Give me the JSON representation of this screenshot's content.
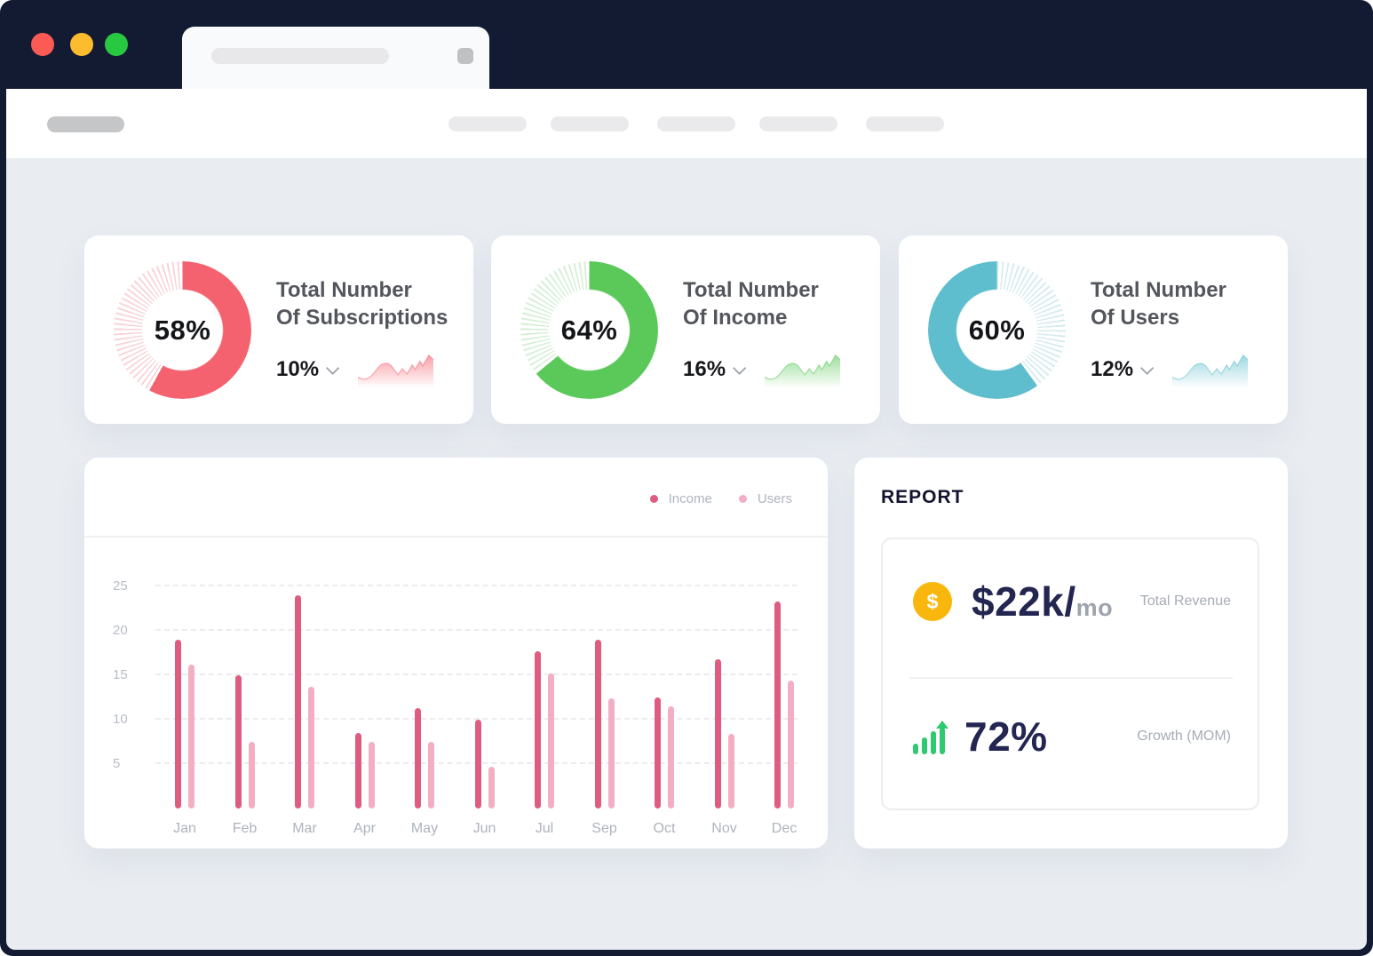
{
  "window": {
    "traffic_lights": {
      "close": "#FB5A55",
      "minimize": "#FDBC2E",
      "maximize": "#28C940"
    },
    "frame_color": "#131B33"
  },
  "stat_cards": [
    {
      "id": "subscriptions",
      "percent": "58%",
      "percent_value": 58,
      "title_lines": [
        "Total Number",
        "Of Subscriptions"
      ],
      "delta": "10%",
      "accent": "#F5626F",
      "tint": "#F9D2D6",
      "fill_from": "start"
    },
    {
      "id": "income",
      "percent": "64%",
      "percent_value": 64,
      "title_lines": [
        "Total Number",
        "Of Income"
      ],
      "delta": "16%",
      "accent": "#5BC959",
      "tint": "#D4EFD3",
      "fill_from": "start"
    },
    {
      "id": "users",
      "percent": "60%",
      "percent_value": 60,
      "title_lines": [
        "Total Number",
        "Of Users"
      ],
      "delta": "12%",
      "accent": "#5FBECD",
      "tint": "#D5EBEF",
      "fill_from": "end"
    }
  ],
  "chart_data": {
    "type": "bar",
    "categories": [
      "Jan",
      "Feb",
      "Mar",
      "Apr",
      "May",
      "Jun",
      "Jul",
      "Sep",
      "Oct",
      "Nov",
      "Dec"
    ],
    "series": [
      {
        "name": "Income",
        "color": "#DE5C80",
        "values": [
          19,
          15,
          24,
          8.5,
          11.3,
          10,
          17.7,
          19,
          12.5,
          16.8,
          23.3
        ]
      },
      {
        "name": "Users",
        "color": "#F2AEC3",
        "values": [
          16.2,
          7.5,
          13.7,
          7.5,
          7.5,
          4.7,
          15.2,
          12.4,
          11.5,
          8.4,
          14.4
        ]
      }
    ],
    "title": "",
    "xlabel": "",
    "ylabel": "",
    "ylim": [
      0,
      27
    ],
    "yticks": [
      5,
      10,
      15,
      20,
      25
    ],
    "grid": "horizontal-dashed",
    "legend_position": "top-right"
  },
  "report": {
    "heading": "REPORT",
    "revenue_value": "$22k/",
    "revenue_unit": "mo",
    "revenue_label": "Total Revenue",
    "dollar_sign": "$",
    "coin_color": "#F9B70D",
    "growth_value": "72%",
    "growth_label": "Growth (MOM)",
    "growth_color": "#2FC96F"
  }
}
